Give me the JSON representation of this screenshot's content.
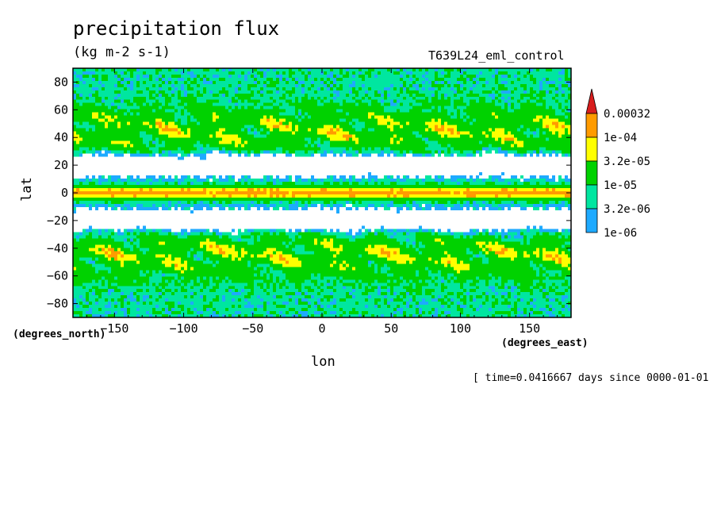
{
  "title": "precipitation flux",
  "units": "(kg m-2 s-1)",
  "run_name": "T639L24_eml_control",
  "timestamp": "[ time=0.0416667 days since 0000-01-01",
  "chart_data": {
    "type": "heatmap",
    "title": "precipitation flux",
    "xlabel": "lon",
    "ylabel": "lat",
    "x_units": "(degrees_east)",
    "y_units": "(degrees_north)",
    "xlim": [
      -180,
      180
    ],
    "ylim": [
      -90,
      90
    ],
    "x_ticks": [
      -150,
      -100,
      -50,
      0,
      50,
      100,
      150
    ],
    "y_ticks": [
      80,
      60,
      40,
      20,
      0,
      -20,
      -40,
      -60,
      -80
    ],
    "colorbar": {
      "levels": [
        "0.00032",
        "1e-04",
        "3.2e-05",
        "1e-05",
        "3.2e-06",
        "1e-06"
      ],
      "colors": [
        "#d81e1e",
        "#ff9b00",
        "#ffff00",
        "#00d200",
        "#00e6a0",
        "#1eaaff"
      ]
    }
  }
}
